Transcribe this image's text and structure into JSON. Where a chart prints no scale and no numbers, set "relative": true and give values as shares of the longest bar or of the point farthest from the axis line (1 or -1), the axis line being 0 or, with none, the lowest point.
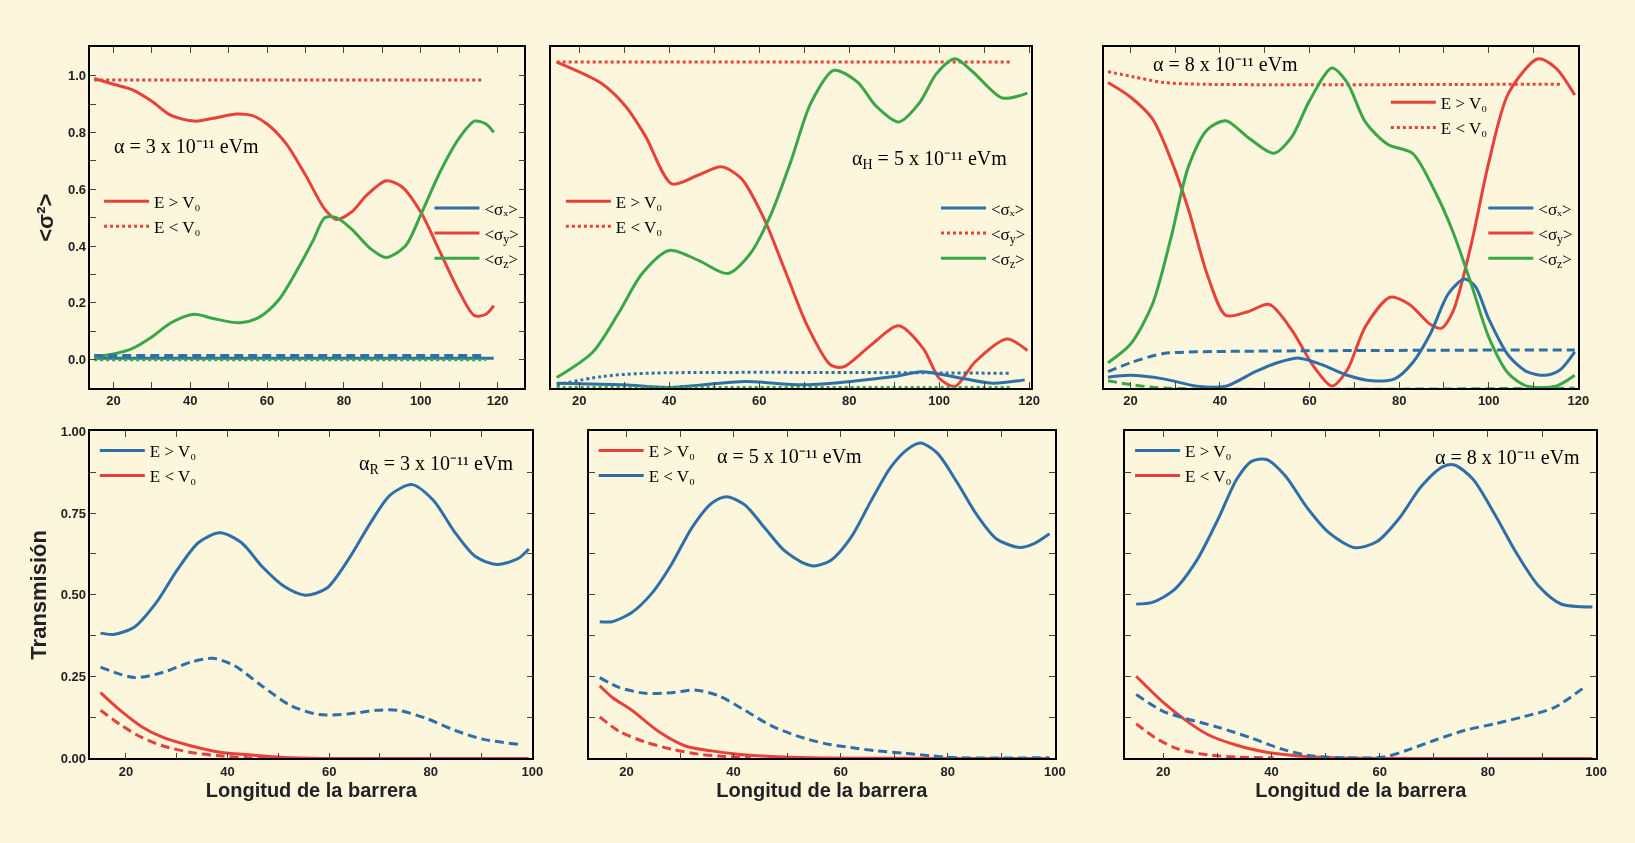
{
  "chart_data": [
    {
      "type": "line",
      "ylabel": "<σ²>",
      "xlim": [
        14,
        127
      ],
      "ylim": [
        -0.1,
        1.1
      ],
      "xticks": [
        20,
        {
          "value": 30,
          "label": null
        },
        40,
        {
          "value": 50,
          "label": null
        },
        60,
        {
          "value": 70,
          "label": null
        },
        80,
        {
          "value": 90,
          "label": null
        },
        100,
        {
          "value": 110,
          "label": null
        },
        120
      ],
      "yticks": [
        {
          "value": 0,
          "label": "0.0"
        },
        {
          "value": 0.1,
          "label": null
        },
        {
          "value": 0.2,
          "label": "0.2"
        },
        {
          "value": 0.3,
          "label": null
        },
        {
          "value": 0.4,
          "label": "0.4"
        },
        {
          "value": 0.5,
          "label": null
        },
        {
          "value": 0.6,
          "label": "0.6"
        },
        {
          "value": 0.7,
          "label": null
        },
        {
          "value": 0.8,
          "label": "0.8"
        },
        {
          "value": 0.9,
          "label": null
        },
        {
          "value": 1,
          "label": "1.0"
        }
      ],
      "annotations": [
        "α = 3 x 10⁻¹¹ eVm"
      ],
      "legend": [
        "middle left",
        "middle right"
      ],
      "line_style": "solid",
      "series": [
        {
          "name": "E > V₀",
          "color": "#e8413c",
          "x": [
            15,
            20,
            25,
            30,
            35,
            41,
            46,
            52,
            56,
            60,
            65,
            70,
            75,
            78,
            82,
            86,
            91,
            95,
            100,
            105,
            110,
            114,
            117,
            119
          ],
          "values": [
            0.99,
            0.97,
            0.95,
            0.91,
            0.86,
            0.84,
            0.85,
            0.865,
            0.86,
            0.83,
            0.76,
            0.65,
            0.53,
            0.494,
            0.52,
            0.58,
            0.63,
            0.61,
            0.52,
            0.38,
            0.24,
            0.155,
            0.16,
            0.19
          ]
        },
        {
          "name": "E < V₀",
          "color": "#e8413c",
          "line_style": "dotted",
          "x": [
            15,
            116
          ],
          "values": [
            0.985,
            0.985
          ]
        },
        {
          "name": "<σₓ>",
          "color": "#2f6fa8",
          "x": [
            15,
            119
          ],
          "values": [
            0.005,
            0.005
          ]
        },
        {
          "name": "<σ$_{y}$>",
          "color": "#e8413c"
        },
        {
          "name": "<σ$_{z}$>",
          "color": "#3aa64a",
          "x": [
            15,
            20,
            25,
            30,
            35,
            41,
            46,
            53,
            58,
            63,
            68,
            72,
            75,
            78,
            82,
            87,
            91,
            96,
            100,
            105,
            110,
            114,
            117,
            119
          ],
          "values": [
            0.01,
            0.02,
            0.04,
            0.08,
            0.13,
            0.16,
            0.145,
            0.13,
            0.15,
            0.21,
            0.32,
            0.42,
            0.5,
            0.5,
            0.46,
            0.39,
            0.36,
            0.4,
            0.51,
            0.66,
            0.78,
            0.84,
            0.83,
            0.8
          ]
        },
        {
          "color": "#2f6fa8",
          "line_style": "dashed",
          "x": [
            15,
            117
          ],
          "values": [
            0.015,
            0.015
          ]
        },
        {
          "color": "#3aa64a",
          "line_style": "dotted",
          "x": [
            15,
            117
          ],
          "values": [
            0.0,
            0.0
          ]
        }
      ]
    },
    {
      "type": "line",
      "relative": true,
      "tick_labels": "x",
      "xlim": [
        13.8,
        120.4
      ],
      "xticks": [
        20,
        {
          "value": 30,
          "label": null
        },
        40,
        {
          "value": 50,
          "label": null
        },
        60,
        {
          "value": 70,
          "label": null
        },
        80,
        {
          "value": 90,
          "label": null
        },
        100,
        {
          "value": 110,
          "label": null
        },
        120
      ],
      "annotations": [
        "α$_{H}$ = 5 x 10⁻¹¹ eVm"
      ],
      "legend": [
        "middle left",
        "middle right"
      ],
      "line_style": "solid",
      "series": [
        {
          "name": "E > V₀",
          "color": "#e8413c",
          "x": [
            15,
            25,
            30.3,
            34.7,
            40.6,
            46.5,
            51.6,
            56,
            61,
            66,
            70.7,
            75.9,
            78.8,
            84.7,
            91,
            96.5,
            100,
            103.5,
            108,
            115,
            119.6
          ],
          "values": [
            0.99,
            0.925,
            0.856,
            0.766,
            0.62,
            0.647,
            0.672,
            0.637,
            0.517,
            0.348,
            0.189,
            0.07,
            0.065,
            0.129,
            0.189,
            0.119,
            0.03,
            0.005,
            0.08,
            0.149,
            0.114
          ]
        },
        {
          "name": "E < V₀",
          "color": "#e8413c",
          "line_style": "dotted",
          "x": [
            15,
            116
          ],
          "values": [
            0.99,
            0.99
          ]
        },
        {
          "name": "<σₓ>",
          "color": "#2f6fa8",
          "x": [
            15,
            30,
            40,
            57,
            70,
            90,
            96,
            105,
            112,
            119
          ],
          "values": [
            0.015,
            0.01,
            0.002,
            0.02,
            0.01,
            0.035,
            0.05,
            0.03,
            0.015,
            0.025
          ]
        },
        {
          "name": "<σ$_{y}$>",
          "color": "#e8413c",
          "line_style": "dotted"
        },
        {
          "name": "<σ$_{z}$>",
          "color": "#3aa64a",
          "x": [
            15,
            23,
            28.8,
            34,
            40,
            46.5,
            53,
            58,
            62.6,
            67,
            71.5,
            76.6,
            81.8,
            86,
            91,
            95.6,
            99.4,
            103.5,
            107.5,
            114,
            119.6
          ],
          "values": [
            0.032,
            0.109,
            0.229,
            0.348,
            0.418,
            0.388,
            0.348,
            0.408,
            0.527,
            0.687,
            0.866,
            0.965,
            0.93,
            0.856,
            0.808,
            0.866,
            0.955,
            1.0,
            0.96,
            0.881,
            0.896
          ]
        },
        {
          "color": "#2f6fa8",
          "line_style": "dotted",
          "x": [
            15,
            25,
            35,
            116
          ],
          "values": [
            0.01,
            0.035,
            0.045,
            0.045
          ]
        },
        {
          "color": "#3aa64a",
          "line_style": "dotted",
          "x": [
            15,
            116
          ],
          "values": [
            0.002,
            0.002
          ]
        }
      ]
    },
    {
      "type": "line",
      "relative": true,
      "tick_labels": "x",
      "xlim": [
        14,
        120
      ],
      "xticks": [
        20,
        {
          "value": 30,
          "label": null
        },
        40,
        {
          "value": 50,
          "label": null
        },
        60,
        {
          "value": 70,
          "label": null
        },
        80,
        {
          "value": 90,
          "label": null
        },
        100,
        {
          "value": 110,
          "label": null
        },
        120
      ],
      "annotations": [
        "α = 8 x 10⁻¹¹ eVm"
      ],
      "legend": [
        "top right",
        "middle right"
      ],
      "line_style": "solid",
      "series": [
        {
          "name": "E > V₀",
          "color": "#e8413c",
          "x": [
            15,
            20,
            24.9,
            29,
            33,
            37.2,
            41.3,
            46.2,
            51,
            56,
            60.9,
            65,
            68.4,
            72.5,
            78,
            82.3,
            87,
            89.5,
            92,
            96,
            100,
            104.4,
            111,
            115,
            119.2
          ],
          "values": [
            0.928,
            0.884,
            0.818,
            0.696,
            0.541,
            0.343,
            0.221,
            0.232,
            0.254,
            0.177,
            0.066,
            0.006,
            0.055,
            0.188,
            0.276,
            0.254,
            0.193,
            0.182,
            0.232,
            0.431,
            0.685,
            0.895,
            1.0,
            0.972,
            0.89
          ]
        },
        {
          "name": "E < V₀",
          "color": "#e8413c",
          "line_style": "dotted",
          "x": [
            15,
            20.8,
            27.4,
            34.8,
            116
          ],
          "values": [
            0.961,
            0.945,
            0.928,
            0.923,
            0.923
          ]
        },
        {
          "name": "<σₓ>",
          "color": "#2f6fa8",
          "x": [
            15,
            20,
            27.4,
            34.8,
            41.3,
            47.9,
            52.8,
            57.7,
            62.6,
            68.4,
            74,
            79,
            83,
            87,
            91,
            94.6,
            97,
            100,
            104.4,
            108.5,
            112.6,
            115.9,
            119.2
          ],
          "values": [
            0.033,
            0.039,
            0.028,
            0.006,
            0.006,
            0.05,
            0.077,
            0.091,
            0.072,
            0.039,
            0.022,
            0.028,
            0.077,
            0.166,
            0.287,
            0.331,
            0.309,
            0.21,
            0.099,
            0.05,
            0.039,
            0.055,
            0.11
          ]
        },
        {
          "name": "<σ$_{y}$>",
          "color": "#e8413c"
        },
        {
          "name": "<σ$_{z}$>",
          "color": "#3aa64a",
          "x": [
            15,
            20,
            24.9,
            29,
            33,
            37.2,
            41.3,
            46.2,
            52,
            56,
            60,
            65,
            68.4,
            72.5,
            77.5,
            83,
            88,
            92,
            96,
            100,
            104.4,
            108.5,
            115,
            119.2
          ],
          "values": [
            0.077,
            0.133,
            0.254,
            0.453,
            0.674,
            0.785,
            0.812,
            0.762,
            0.713,
            0.762,
            0.873,
            0.972,
            0.928,
            0.807,
            0.74,
            0.713,
            0.597,
            0.475,
            0.32,
            0.155,
            0.044,
            0.006,
            0.006,
            0.039
          ]
        },
        {
          "color": "#2f6fa8",
          "line_style": "dashed",
          "x": [
            15,
            20,
            27.4,
            34.8,
            119.2
          ],
          "values": [
            0.05,
            0.077,
            0.105,
            0.11,
            0.116
          ]
        },
        {
          "color": "#3aa64a",
          "line_style": "dashed",
          "x": [
            15,
            20,
            27.4,
            119.2
          ],
          "values": [
            0.022,
            0.011,
            0.0,
            0.0
          ]
        }
      ]
    },
    {
      "type": "line",
      "ylabel": "Transmisión",
      "xlabel": "Longitud de la barrera",
      "xlim": [
        13,
        100
      ],
      "ylim": [
        0,
        1
      ],
      "xticks": [
        20,
        {
          "value": 30,
          "label": null
        },
        40,
        {
          "value": 50,
          "label": null
        },
        60,
        {
          "value": 70,
          "label": null
        },
        80,
        {
          "value": 90,
          "label": null
        },
        100
      ],
      "yticks": [
        {
          "value": 0,
          "label": "0.00"
        },
        {
          "value": 0.125,
          "label": null
        },
        {
          "value": 0.25,
          "label": "0.25"
        },
        {
          "value": 0.375,
          "label": null
        },
        {
          "value": 0.5,
          "label": "0.50"
        },
        {
          "value": 0.625,
          "label": null
        },
        {
          "value": 0.75,
          "label": "0.75"
        },
        {
          "value": 0.875,
          "label": null
        },
        {
          "value": 1,
          "label": "1.00"
        }
      ],
      "annotations": [
        "α$_{R}$ = 3 x 10⁻¹¹ eVm"
      ],
      "legend": "top left",
      "line_style": "solid",
      "series": [
        {
          "name": "E > V₀",
          "color": "#2f6fa8",
          "x": [
            15,
            17.6,
            21.7,
            26,
            30,
            34.3,
            38.5,
            42.7,
            46.9,
            51.1,
            55.3,
            59.5,
            63.7,
            67.9,
            72,
            76.3,
            80.5,
            84.7,
            88.8,
            93,
            97.2,
            99.3
          ],
          "values": [
            0.383,
            0.379,
            0.402,
            0.477,
            0.574,
            0.66,
            0.69,
            0.66,
            0.585,
            0.526,
            0.499,
            0.52,
            0.606,
            0.714,
            0.805,
            0.837,
            0.789,
            0.692,
            0.617,
            0.593,
            0.611,
            0.64
          ]
        },
        {
          "name": "E < V₀",
          "color": "#e8413c",
          "x": [
            15,
            19,
            23.1,
            27.3,
            32.9,
            38.5,
            44.1,
            51.1,
            58,
            99.3
          ],
          "values": [
            0.201,
            0.145,
            0.097,
            0.064,
            0.038,
            0.019,
            0.011,
            0.003,
            0.0,
            0.0
          ]
        },
        {
          "color": "#2f6fa8",
          "line_style": "dashed",
          "x": [
            15,
            21.7,
            27.3,
            32.9,
            37.1,
            41.3,
            46.9,
            52.5,
            58,
            63.7,
            69.3,
            73.5,
            79,
            84.7,
            90.2,
            97.2
          ],
          "values": [
            0.279,
            0.247,
            0.263,
            0.295,
            0.306,
            0.284,
            0.22,
            0.161,
            0.134,
            0.136,
            0.147,
            0.147,
            0.123,
            0.086,
            0.059,
            0.043
          ]
        },
        {
          "color": "#e8413c",
          "line_style": "dashed",
          "x": [
            15,
            19,
            23.1,
            27.3,
            32.9,
            38.5,
            44.1,
            50
          ],
          "values": [
            0.147,
            0.102,
            0.064,
            0.038,
            0.018,
            0.008,
            0.002,
            0.0
          ]
        }
      ]
    },
    {
      "type": "line",
      "xlabel": "Longitud de la barrera",
      "tick_labels": "x",
      "xlim": [
        13,
        100
      ],
      "ylim": [
        0,
        1
      ],
      "xticks": [
        20,
        {
          "value": 30,
          "label": null
        },
        40,
        {
          "value": 50,
          "label": null
        },
        60,
        {
          "value": 70,
          "label": null
        },
        80,
        {
          "value": 90,
          "label": null
        },
        100
      ],
      "annotations": [
        "α = 5 x 10⁻¹¹ eVm"
      ],
      "legend": "top left",
      "yticks": [
        {
          "value": 0,
          "label": null
        },
        {
          "value": 0.125,
          "label": null
        },
        {
          "value": 0.25,
          "label": null
        },
        {
          "value": 0.375,
          "label": null
        },
        {
          "value": 0.5,
          "label": null
        },
        {
          "value": 0.625,
          "label": null
        },
        {
          "value": 0.75,
          "label": null
        },
        {
          "value": 0.875,
          "label": null
        },
        {
          "value": 1,
          "label": null
        }
      ],
      "line_style": "solid",
      "series": [
        {
          "name": "E > V₀",
          "color": "#e8413c",
          "x": [
            15,
            17.3,
            21,
            26,
            31,
            35.9,
            40.8,
            47,
            54.4,
            99
          ],
          "values": [
            0.222,
            0.187,
            0.147,
            0.082,
            0.038,
            0.023,
            0.013,
            0.006,
            0.002,
            0.0
          ]
        },
        {
          "name": "E < V₀",
          "color": "#2f6fa8",
          "x": [
            15,
            17.3,
            21,
            24.8,
            28.5,
            32.2,
            35.9,
            38.7,
            42.1,
            45.8,
            49.5,
            53.2,
            55,
            58.2,
            61.9,
            65.6,
            69.3,
            72.4,
            74.9,
            78,
            81.7,
            85.4,
            89.1,
            93.4,
            95.9,
            99
          ],
          "values": [
            0.418,
            0.418,
            0.446,
            0.506,
            0.596,
            0.705,
            0.78,
            0.8,
            0.775,
            0.705,
            0.635,
            0.596,
            0.588,
            0.606,
            0.675,
            0.785,
            0.889,
            0.944,
            0.964,
            0.934,
            0.845,
            0.745,
            0.671,
            0.645,
            0.655,
            0.687
          ]
        },
        {
          "color": "#2f6fa8",
          "line_style": "dashed",
          "x": [
            15,
            18.6,
            23.5,
            28.5,
            32.8,
            37.1,
            42.1,
            47,
            52,
            56.9,
            61.9,
            66.8,
            71.8,
            76.7,
            81.7,
            99
          ],
          "values": [
            0.247,
            0.217,
            0.199,
            0.201,
            0.209,
            0.192,
            0.147,
            0.1,
            0.068,
            0.046,
            0.033,
            0.023,
            0.016,
            0.008,
            0.002,
            0.002
          ]
        },
        {
          "color": "#e8413c",
          "line_style": "dashed",
          "x": [
            15,
            18.6,
            23.5,
            28.5,
            33.4,
            38.3,
            43.2
          ],
          "values": [
            0.127,
            0.083,
            0.05,
            0.028,
            0.013,
            0.006,
            0.002
          ]
        }
      ]
    },
    {
      "type": "line",
      "xlabel": "Longitud de la barrera",
      "tick_labels": "x",
      "xlim": [
        13,
        100
      ],
      "ylim": [
        0,
        1
      ],
      "xticks": [
        20,
        {
          "value": 30,
          "label": null
        },
        40,
        {
          "value": 50,
          "label": null
        },
        60,
        {
          "value": 70,
          "label": null
        },
        80,
        {
          "value": 90,
          "label": null
        },
        100
      ],
      "annotations": [
        "α = 8 x 10⁻¹¹ eVm"
      ],
      "legend": "top left",
      "yticks": [
        {
          "value": 0,
          "label": null
        },
        {
          "value": 0.125,
          "label": null
        },
        {
          "value": 0.25,
          "label": null
        },
        {
          "value": 0.375,
          "label": null
        },
        {
          "value": 0.5,
          "label": null
        },
        {
          "value": 0.625,
          "label": null
        },
        {
          "value": 0.75,
          "label": null
        },
        {
          "value": 0.875,
          "label": null
        },
        {
          "value": 1,
          "label": null
        }
      ],
      "line_style": "solid",
      "series": [
        {
          "name": "E > V₀",
          "color": "#2f6fa8",
          "x": [
            15,
            18,
            22,
            26.1,
            30.2,
            33.6,
            36.3,
            39.1,
            42.5,
            46.6,
            50.6,
            55.4,
            59.5,
            63.6,
            67.7,
            71.7,
            73.8,
            77.2,
            81.3,
            85.4,
            89.4,
            93.5,
            99.3
          ],
          "values": [
            0.472,
            0.477,
            0.515,
            0.603,
            0.734,
            0.854,
            0.908,
            0.914,
            0.865,
            0.766,
            0.69,
            0.644,
            0.663,
            0.734,
            0.832,
            0.892,
            0.897,
            0.854,
            0.745,
            0.624,
            0.526,
            0.472,
            0.463
          ]
        },
        {
          "name": "E < V₀",
          "color": "#e8413c",
          "x": [
            15,
            20,
            24.1,
            28.2,
            33.6,
            39.1,
            44.5,
            51.3,
            99.3
          ],
          "values": [
            0.251,
            0.171,
            0.117,
            0.073,
            0.04,
            0.019,
            0.008,
            0.002,
            0.0
          ]
        },
        {
          "color": "#2f6fa8",
          "line_style": "dashed",
          "x": [
            15,
            20,
            24.1,
            30.2,
            36.3,
            41.8,
            47.2,
            54,
            60.8,
            64.9,
            70.4,
            75.8,
            81.3,
            86.7,
            92.2,
            97.6
          ],
          "values": [
            0.195,
            0.144,
            0.122,
            0.095,
            0.062,
            0.029,
            0.008,
            0.002,
            0.004,
            0.024,
            0.057,
            0.086,
            0.106,
            0.128,
            0.155,
            0.215
          ]
        },
        {
          "color": "#e8413c",
          "line_style": "dashed",
          "x": [
            15,
            18.6,
            22.7,
            28.2,
            33.6,
            40.4
          ],
          "values": [
            0.106,
            0.062,
            0.029,
            0.011,
            0.004,
            0.002
          ]
        }
      ]
    }
  ]
}
